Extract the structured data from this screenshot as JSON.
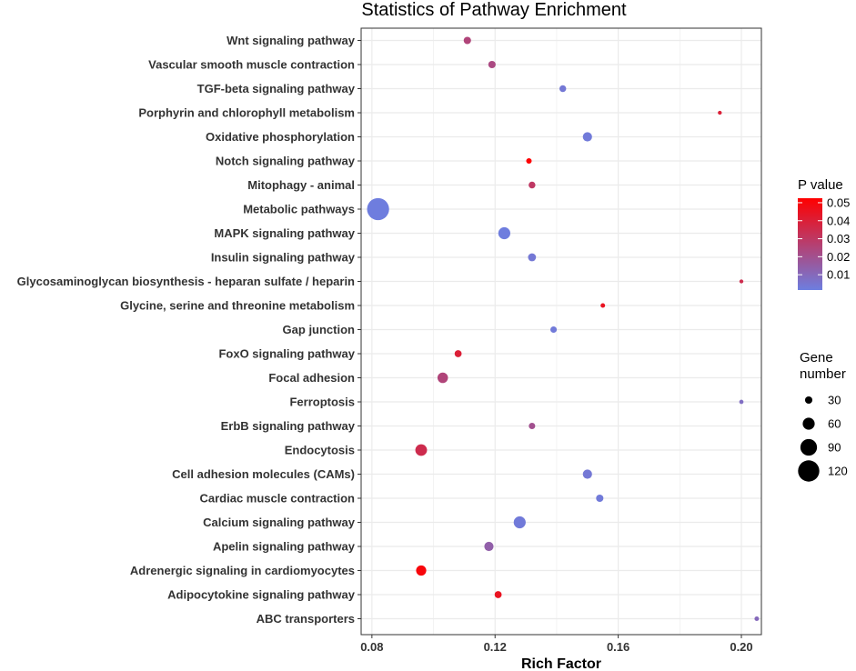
{
  "chart_data": {
    "type": "scatter",
    "title": "Statistics of Pathway Enrichment",
    "xlabel": "Rich Factor",
    "ylabel": "",
    "xlim": [
      0.0765,
      0.2065
    ],
    "x_ticks": [
      0.08,
      0.12,
      0.16,
      0.2
    ],
    "x_tick_labels": [
      "0.08",
      "0.12",
      "0.16",
      "0.20"
    ],
    "grid": true,
    "colors": {
      "low": "#6d7ee0",
      "high": "#ff0000",
      "panel_border": "#333333",
      "grid": "#ebebeb"
    },
    "points": [
      {
        "pathway": "Wnt signaling pathway",
        "rich_factor": 0.111,
        "p_value": 0.025,
        "gene_number": 30
      },
      {
        "pathway": "Vascular smooth muscle contraction",
        "rich_factor": 0.119,
        "p_value": 0.023,
        "gene_number": 30
      },
      {
        "pathway": "TGF-beta signaling pathway",
        "rich_factor": 0.142,
        "p_value": 0.004,
        "gene_number": 26
      },
      {
        "pathway": "Porphyrin and chlorophyll metabolism",
        "rich_factor": 0.193,
        "p_value": 0.04,
        "gene_number": 8
      },
      {
        "pathway": "Oxidative phosphorylation",
        "rich_factor": 0.15,
        "p_value": 0.003,
        "gene_number": 42
      },
      {
        "pathway": "Notch signaling pathway",
        "rich_factor": 0.131,
        "p_value": 0.052,
        "gene_number": 18
      },
      {
        "pathway": "Mitophagy - animal",
        "rich_factor": 0.132,
        "p_value": 0.03,
        "gene_number": 26
      },
      {
        "pathway": "Metabolic pathways",
        "rich_factor": 0.082,
        "p_value": 0.002,
        "gene_number": 125
      },
      {
        "pathway": "MAPK signaling pathway",
        "rich_factor": 0.123,
        "p_value": 0.002,
        "gene_number": 60
      },
      {
        "pathway": "Insulin signaling pathway",
        "rich_factor": 0.132,
        "p_value": 0.004,
        "gene_number": 34
      },
      {
        "pathway": "Glycosaminoglycan biosynthesis - heparan sulfate / heparin",
        "rich_factor": 0.2,
        "p_value": 0.035,
        "gene_number": 8
      },
      {
        "pathway": "Glycine, serine and threonine metabolism",
        "rich_factor": 0.155,
        "p_value": 0.045,
        "gene_number": 12
      },
      {
        "pathway": "Gap junction",
        "rich_factor": 0.139,
        "p_value": 0.003,
        "gene_number": 24
      },
      {
        "pathway": "FoxO signaling pathway",
        "rich_factor": 0.108,
        "p_value": 0.04,
        "gene_number": 28
      },
      {
        "pathway": "Focal adhesion",
        "rich_factor": 0.103,
        "p_value": 0.025,
        "gene_number": 50
      },
      {
        "pathway": "Ferroptosis",
        "rich_factor": 0.2,
        "p_value": 0.008,
        "gene_number": 10
      },
      {
        "pathway": "ErbB signaling pathway",
        "rich_factor": 0.132,
        "p_value": 0.02,
        "gene_number": 24
      },
      {
        "pathway": "Endocytosis",
        "rich_factor": 0.096,
        "p_value": 0.035,
        "gene_number": 58
      },
      {
        "pathway": "Cell adhesion molecules (CAMs)",
        "rich_factor": 0.15,
        "p_value": 0.004,
        "gene_number": 42
      },
      {
        "pathway": "Cardiac muscle contraction",
        "rich_factor": 0.154,
        "p_value": 0.003,
        "gene_number": 30
      },
      {
        "pathway": "Calcium signaling pathway",
        "rich_factor": 0.128,
        "p_value": 0.003,
        "gene_number": 60
      },
      {
        "pathway": "Apelin signaling pathway",
        "rich_factor": 0.118,
        "p_value": 0.014,
        "gene_number": 42
      },
      {
        "pathway": "Adrenergic signaling in cardiomyocytes",
        "rich_factor": 0.096,
        "p_value": 0.05,
        "gene_number": 48
      },
      {
        "pathway": "Adipocytokine signaling pathway",
        "rich_factor": 0.121,
        "p_value": 0.045,
        "gene_number": 28
      },
      {
        "pathway": "ABC transporters",
        "rich_factor": 0.205,
        "p_value": 0.01,
        "gene_number": 12
      }
    ],
    "legend_color": {
      "title": "P value",
      "range": [
        0.0015,
        0.0525
      ],
      "ticks": [
        0.01,
        0.02,
        0.03,
        0.04,
        0.05
      ],
      "tick_labels": [
        "0.01",
        "0.02",
        "0.03",
        "0.04",
        "0.05"
      ],
      "position": "right"
    },
    "legend_size": {
      "title_lines": [
        "Gene",
        "number"
      ],
      "values": [
        30,
        60,
        90,
        120
      ],
      "labels": [
        "30",
        "60",
        "90",
        "120"
      ],
      "position": "right"
    }
  }
}
